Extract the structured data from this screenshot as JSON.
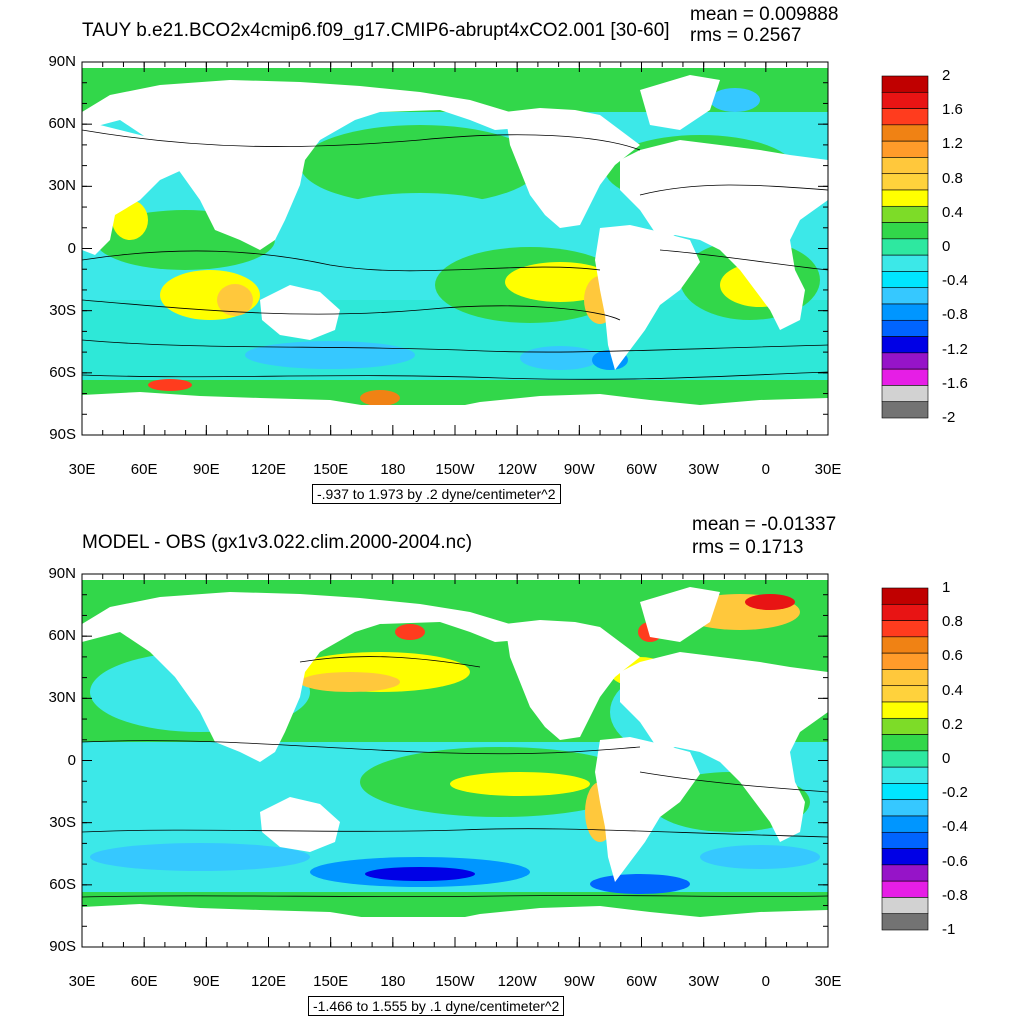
{
  "panels": [
    {
      "title": "TAUY b.e21.BCO2x4cmip6.f09_g17.CMIP6-abrupt4xCO2.001 [30-60]",
      "mean_label": "mean = 0.009888",
      "rms_label": "rms = 0.2567",
      "range_label": "-.937 to 1.973 by .2 dyne/centimeter^2",
      "lat_ticks": [
        "90N",
        "60N",
        "30N",
        "0",
        "30S",
        "60S",
        "90S"
      ],
      "lon_ticks": [
        "30E",
        "60E",
        "90E",
        "120E",
        "150E",
        "180",
        "150W",
        "120W",
        "90W",
        "60W",
        "30W",
        "0",
        "30E"
      ],
      "colorbar_labels": [
        "2",
        "1.6",
        "1.2",
        "0.8",
        "0.4",
        "0",
        "-0.4",
        "-0.8",
        "-1.2",
        "-1.6",
        "-2"
      ],
      "colorbar_colors": [
        "#c00000",
        "#e81414",
        "#ff3c1e",
        "#f08214",
        "#ff9b2a",
        "#ffc83c",
        "#ffd23c",
        "#ffff00",
        "#7ddc28",
        "#32d74a",
        "#2ee8a0",
        "#3ce8e8",
        "#00e6ff",
        "#36c8ff",
        "#0096ff",
        "#0064ff",
        "#0000e6",
        "#9614c8",
        "#e61ee6",
        "#d2d2d2",
        "#737373"
      ]
    },
    {
      "title": "MODEL - OBS (gx1v3.022.clim.2000-2004.nc)",
      "mean_label": "mean = -0.01337",
      "rms_label": "rms = 0.1713",
      "range_label": "-1.466 to 1.555 by .1 dyne/centimeter^2",
      "lat_ticks": [
        "90N",
        "60N",
        "30N",
        "0",
        "30S",
        "60S",
        "90S"
      ],
      "lon_ticks": [
        "30E",
        "60E",
        "90E",
        "120E",
        "150E",
        "180",
        "150W",
        "120W",
        "90W",
        "60W",
        "30W",
        "0",
        "30E"
      ],
      "colorbar_labels": [
        "1",
        "0.8",
        "0.6",
        "0.4",
        "0.2",
        "0",
        "-0.2",
        "-0.4",
        "-0.6",
        "-0.8",
        "-1"
      ],
      "colorbar_colors": [
        "#c00000",
        "#e81414",
        "#ff3c1e",
        "#f08214",
        "#ff9b2a",
        "#ffc83c",
        "#ffd23c",
        "#ffff00",
        "#7ddc28",
        "#32d74a",
        "#2ee8a0",
        "#3ce8e8",
        "#00e6ff",
        "#36c8ff",
        "#0096ff",
        "#0064ff",
        "#0000e6",
        "#9614c8",
        "#e61ee6",
        "#d2d2d2",
        "#737373"
      ]
    }
  ],
  "chart_data": [
    {
      "type": "heatmap",
      "title": "TAUY b.e21.BCO2x4cmip6.f09_g17.CMIP6-abrupt4xCO2.001 [30-60]",
      "mean": 0.009888,
      "rms": 0.2567,
      "x_ticks": [
        "30E",
        "60E",
        "90E",
        "120E",
        "150E",
        "180",
        "150W",
        "120W",
        "90W",
        "60W",
        "30W",
        "0",
        "30E"
      ],
      "y_ticks": [
        "90N",
        "60N",
        "30N",
        "0",
        "30S",
        "60S",
        "90S"
      ],
      "xlim": [
        30,
        390
      ],
      "ylim": [
        -90,
        90
      ],
      "color_range": [
        -2,
        2
      ],
      "contour_info": "-.937 to 1.973 by .2 dyne/centimeter^2"
    },
    {
      "type": "heatmap",
      "title": "MODEL - OBS (gx1v3.022.clim.2000-2004.nc)",
      "mean": -0.01337,
      "rms": 0.1713,
      "x_ticks": [
        "30E",
        "60E",
        "90E",
        "120E",
        "150E",
        "180",
        "150W",
        "120W",
        "90W",
        "60W",
        "30W",
        "0",
        "30E"
      ],
      "y_ticks": [
        "90N",
        "60N",
        "30N",
        "0",
        "30S",
        "60S",
        "90S"
      ],
      "xlim": [
        30,
        390
      ],
      "ylim": [
        -90,
        90
      ],
      "color_range": [
        -1,
        1
      ],
      "contour_info": "-1.466 to 1.555 by .1 dyne/centimeter^2"
    }
  ]
}
